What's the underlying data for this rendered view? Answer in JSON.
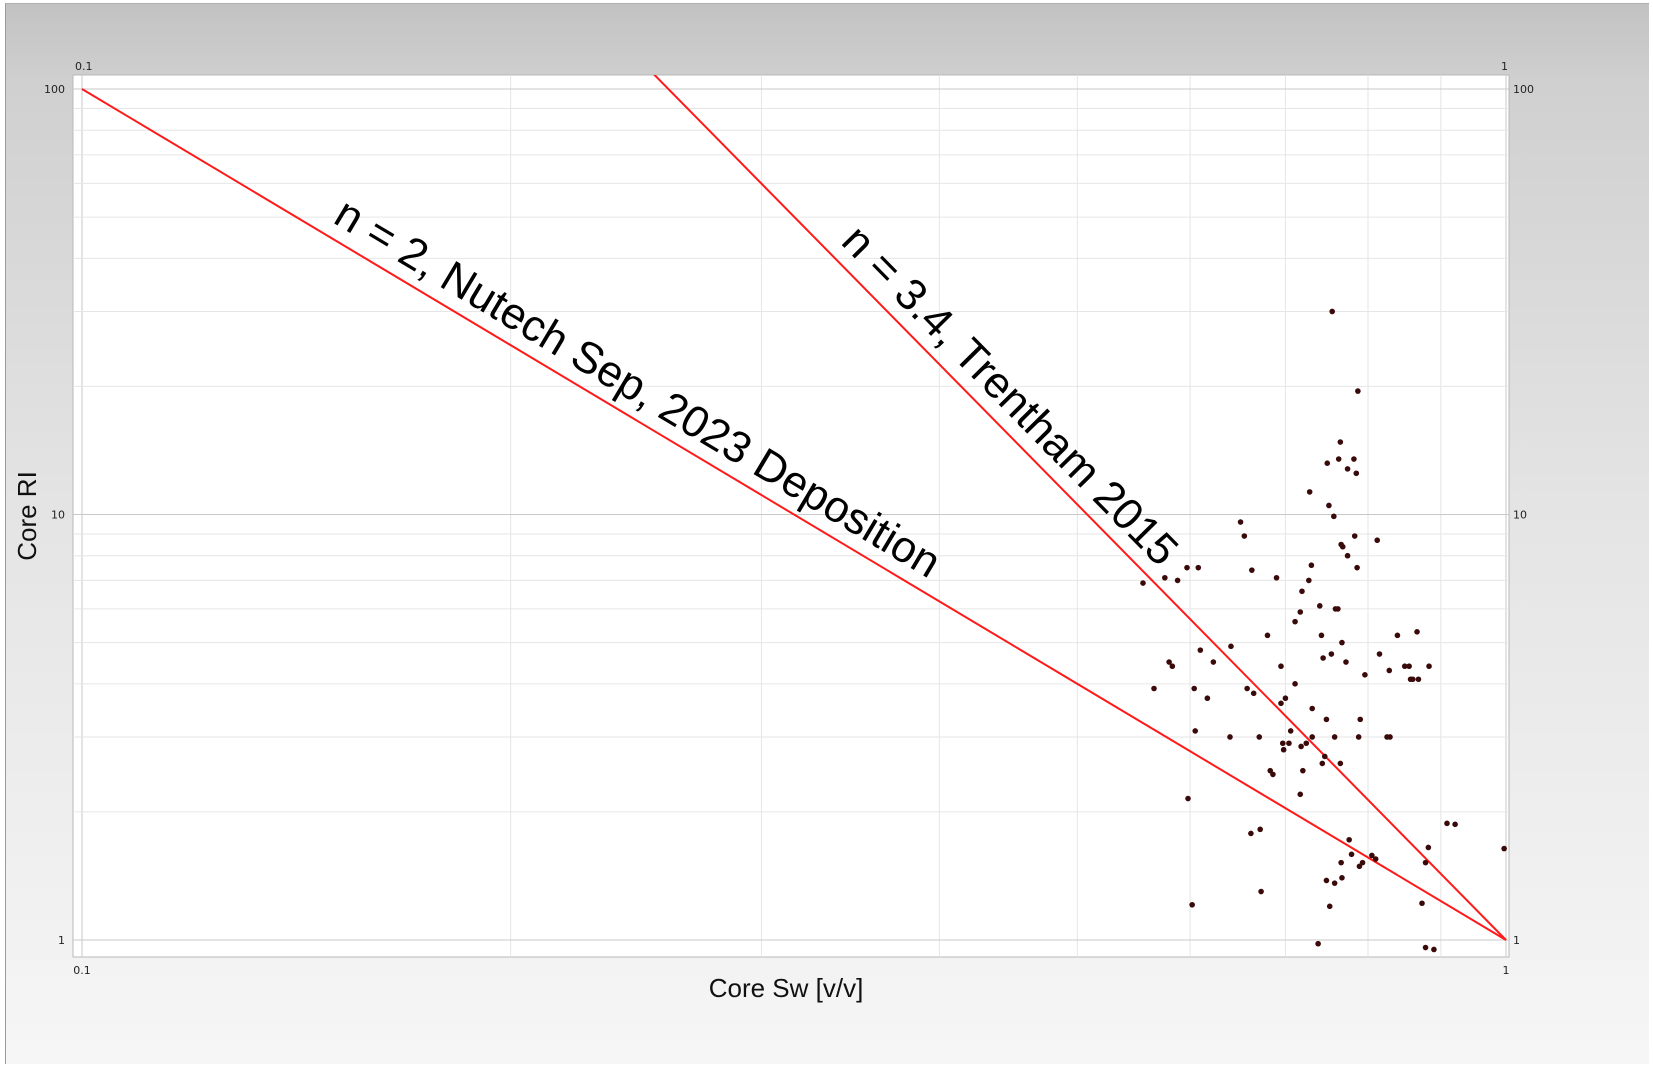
{
  "chart_data": {
    "type": "scatter",
    "xlabel": "Core Sw [v/v]",
    "ylabel": "Core RI",
    "x_scale": "log",
    "y_scale": "log",
    "xlim": [
      0.1,
      1
    ],
    "ylim": [
      1,
      100
    ],
    "x_ticks": [
      "0.1",
      "1"
    ],
    "x_top_ticks": [
      "0.1",
      "1"
    ],
    "y_ticks": [
      "100",
      "10",
      "1"
    ],
    "y_right_ticks": [
      "100",
      "10",
      "1"
    ],
    "grid": true,
    "point_color": "#3a0a0a",
    "line_color": "#ff1a1a",
    "fit_lines": [
      {
        "label": "n = 2, Nutech Sep, 2023 Deposition",
        "n": 2
      },
      {
        "label": "n = 3.4, Trentham 2015",
        "n": 3.4
      }
    ],
    "points": [
      [
        0.755,
        30.0
      ],
      [
        0.787,
        19.5
      ],
      [
        0.765,
        14.8
      ],
      [
        0.763,
        13.5
      ],
      [
        0.749,
        13.2
      ],
      [
        0.782,
        13.5
      ],
      [
        0.774,
        12.8
      ],
      [
        0.785,
        12.5
      ],
      [
        0.728,
        11.3
      ],
      [
        0.751,
        10.5
      ],
      [
        0.757,
        9.9
      ],
      [
        0.651,
        9.6
      ],
      [
        0.655,
        8.9
      ],
      [
        0.783,
        8.9
      ],
      [
        0.812,
        8.7
      ],
      [
        0.768,
        8.4
      ],
      [
        0.766,
        8.5
      ],
      [
        0.774,
        8.0
      ],
      [
        0.73,
        7.6
      ],
      [
        0.786,
        7.5
      ],
      [
        0.663,
        7.4
      ],
      [
        0.597,
        7.5
      ],
      [
        0.608,
        7.5
      ],
      [
        0.588,
        7.0
      ],
      [
        0.576,
        7.1
      ],
      [
        0.69,
        7.1
      ],
      [
        0.727,
        7.0
      ],
      [
        0.719,
        6.6
      ],
      [
        0.74,
        6.1
      ],
      [
        0.759,
        6.0
      ],
      [
        0.762,
        6.0
      ],
      [
        0.717,
        5.9
      ],
      [
        0.711,
        5.6
      ],
      [
        0.556,
        6.9
      ],
      [
        0.68,
        5.2
      ],
      [
        0.742,
        5.2
      ],
      [
        0.767,
        5.0
      ],
      [
        0.839,
        5.2
      ],
      [
        0.866,
        5.3
      ],
      [
        0.641,
        4.9
      ],
      [
        0.61,
        4.8
      ],
      [
        0.744,
        4.6
      ],
      [
        0.754,
        4.7
      ],
      [
        0.772,
        4.5
      ],
      [
        0.815,
        4.7
      ],
      [
        0.58,
        4.5
      ],
      [
        0.583,
        4.4
      ],
      [
        0.623,
        4.5
      ],
      [
        0.695,
        4.4
      ],
      [
        0.855,
        4.4
      ],
      [
        0.849,
        4.4
      ],
      [
        0.86,
        4.1
      ],
      [
        0.857,
        4.1
      ],
      [
        0.868,
        4.1
      ],
      [
        0.711,
        4.0
      ],
      [
        0.566,
        3.9
      ],
      [
        0.604,
        3.9
      ],
      [
        0.658,
        3.9
      ],
      [
        0.665,
        3.8
      ],
      [
        0.7,
        3.7
      ],
      [
        0.617,
        3.7
      ],
      [
        0.695,
        3.6
      ],
      [
        0.731,
        3.5
      ],
      [
        0.748,
        3.3
      ],
      [
        0.79,
        3.3
      ],
      [
        0.706,
        3.1
      ],
      [
        0.605,
        3.1
      ],
      [
        0.671,
        3.0
      ],
      [
        0.731,
        3.0
      ],
      [
        0.758,
        3.0
      ],
      [
        0.788,
        3.0
      ],
      [
        0.825,
        3.0
      ],
      [
        0.829,
        3.0
      ],
      [
        0.697,
        2.9
      ],
      [
        0.704,
        2.9
      ],
      [
        0.718,
        2.85
      ],
      [
        0.698,
        2.8
      ],
      [
        0.746,
        2.7
      ],
      [
        0.72,
        2.5
      ],
      [
        0.683,
        2.5
      ],
      [
        0.686,
        2.45
      ],
      [
        0.765,
        2.6
      ],
      [
        0.743,
        2.6
      ],
      [
        0.717,
        2.2
      ],
      [
        0.598,
        2.15
      ],
      [
        0.672,
        1.82
      ],
      [
        0.662,
        1.78
      ],
      [
        0.776,
        1.72
      ],
      [
        0.779,
        1.59
      ],
      [
        0.805,
        1.58
      ],
      [
        0.81,
        1.55
      ],
      [
        0.766,
        1.52
      ],
      [
        0.789,
        1.49
      ],
      [
        0.793,
        1.52
      ],
      [
        0.767,
        1.4
      ],
      [
        0.748,
        1.38
      ],
      [
        0.758,
        1.36
      ],
      [
        0.909,
        1.88
      ],
      [
        0.921,
        1.87
      ],
      [
        0.878,
        1.52
      ],
      [
        0.882,
        1.65
      ],
      [
        0.673,
        1.3
      ],
      [
        0.752,
        1.2
      ],
      [
        0.873,
        1.22
      ],
      [
        0.738,
        0.98
      ],
      [
        0.878,
        0.96
      ],
      [
        0.89,
        0.95
      ],
      [
        0.602,
        1.21
      ],
      [
        0.997,
        1.64
      ],
      [
        0.883,
        4.4
      ],
      [
        0.796,
        4.2
      ],
      [
        0.828,
        4.3
      ],
      [
        0.64,
        3.0
      ],
      [
        0.724,
        2.9
      ]
    ]
  }
}
